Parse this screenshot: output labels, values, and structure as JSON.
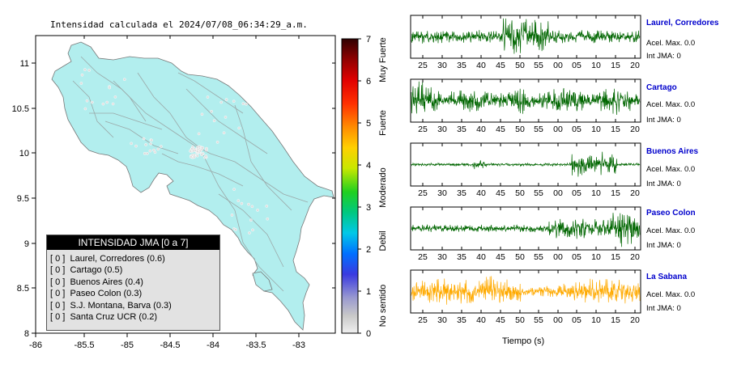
{
  "map": {
    "title": "Intensidad calculada el 2024/07/08_06:34:29_a.m.",
    "x_ticks": [
      "-86",
      "-85.5",
      "-85",
      "-84.5",
      "-84",
      "-83.5",
      "-83"
    ],
    "y_ticks": [
      "11",
      "10.5",
      "10",
      "9.5",
      "9",
      "8.5",
      "8"
    ],
    "land_color": "#b2eeee"
  },
  "colorbar": {
    "ticks": [
      "7",
      "6",
      "5",
      "4",
      "3",
      "2",
      "1",
      "0"
    ],
    "categories": [
      "Muy Fuerte",
      "Fuerte",
      "Moderado",
      "Debil",
      "No sentido"
    ]
  },
  "legend": {
    "title": "INTENSIDAD JMA [0 a 7]",
    "items": [
      "[ 0 ]  Laurel, Corredores (0.6)",
      "[ 0 ]  Cartago (0.5)",
      "[ 0 ]  Buenos Aires (0.4)",
      "[ 0 ]  Paseo Colon (0.3)",
      "[ 0 ]  S.J. Montana, Barva (0.3)",
      "[ 0 ]  Santa Cruz UCR (0.2)"
    ]
  },
  "waveforms": {
    "x_label": "Tiempo (s)",
    "stations": [
      {
        "name": "Laurel, Corredores",
        "accel": "Acel. Max. 0.0",
        "jma": "Int JMA: 0",
        "color": "#006600",
        "ticks": [
          "25",
          "30",
          "35",
          "40",
          "45",
          "50",
          "55",
          "00",
          "05",
          "10",
          "15",
          "20"
        ]
      },
      {
        "name": "Cartago",
        "accel": "Acel. Max. 0.0",
        "jma": "Int JMA: 0",
        "color": "#006600",
        "ticks": [
          "25",
          "30",
          "35",
          "40",
          "45",
          "50",
          "55",
          "00",
          "05",
          "10",
          "15",
          "20"
        ]
      },
      {
        "name": "Buenos Aires",
        "accel": "Acel. Max. 0.0",
        "jma": "Int JMA: 0",
        "color": "#006600",
        "ticks": [
          "25",
          "30",
          "35",
          "40",
          "45",
          "50",
          "55",
          "00",
          "05",
          "10",
          "15",
          "20"
        ]
      },
      {
        "name": "Paseo Colon",
        "accel": "Acel. Max. 0.0",
        "jma": "Int JMA: 0",
        "color": "#006600",
        "ticks": [
          "25",
          "30",
          "35",
          "40",
          "45",
          "50",
          "55",
          "00",
          "05",
          "10",
          "15",
          "20"
        ]
      },
      {
        "name": "La Sabana",
        "accel": "Acel. Max. 0.0",
        "jma": "Int JMA: 0",
        "color": "#ffaa00",
        "ticks": [
          "25",
          "30",
          "35",
          "40",
          "45",
          "50",
          "55",
          "00",
          "05",
          "10",
          "15",
          "20"
        ]
      }
    ]
  },
  "chart_data": [
    {
      "type": "heatmap",
      "title": "Intensidad calculada el 2024/07/08_06:34:29_a.m.",
      "xlim": [
        -86,
        -82.6
      ],
      "ylim": [
        8,
        11.3
      ],
      "colorbar_range": [
        0,
        7
      ],
      "colorbar_labels": [
        "No sentido",
        "Debil",
        "Moderado",
        "Fuerte",
        "Muy Fuerte"
      ]
    },
    {
      "type": "line",
      "xlabel": "Tiempo (s)",
      "series": [
        {
          "name": "Laurel, Corredores"
        },
        {
          "name": "Cartago"
        },
        {
          "name": "Buenos Aires"
        },
        {
          "name": "Paseo Colon"
        },
        {
          "name": "La Sabana"
        }
      ]
    }
  ]
}
